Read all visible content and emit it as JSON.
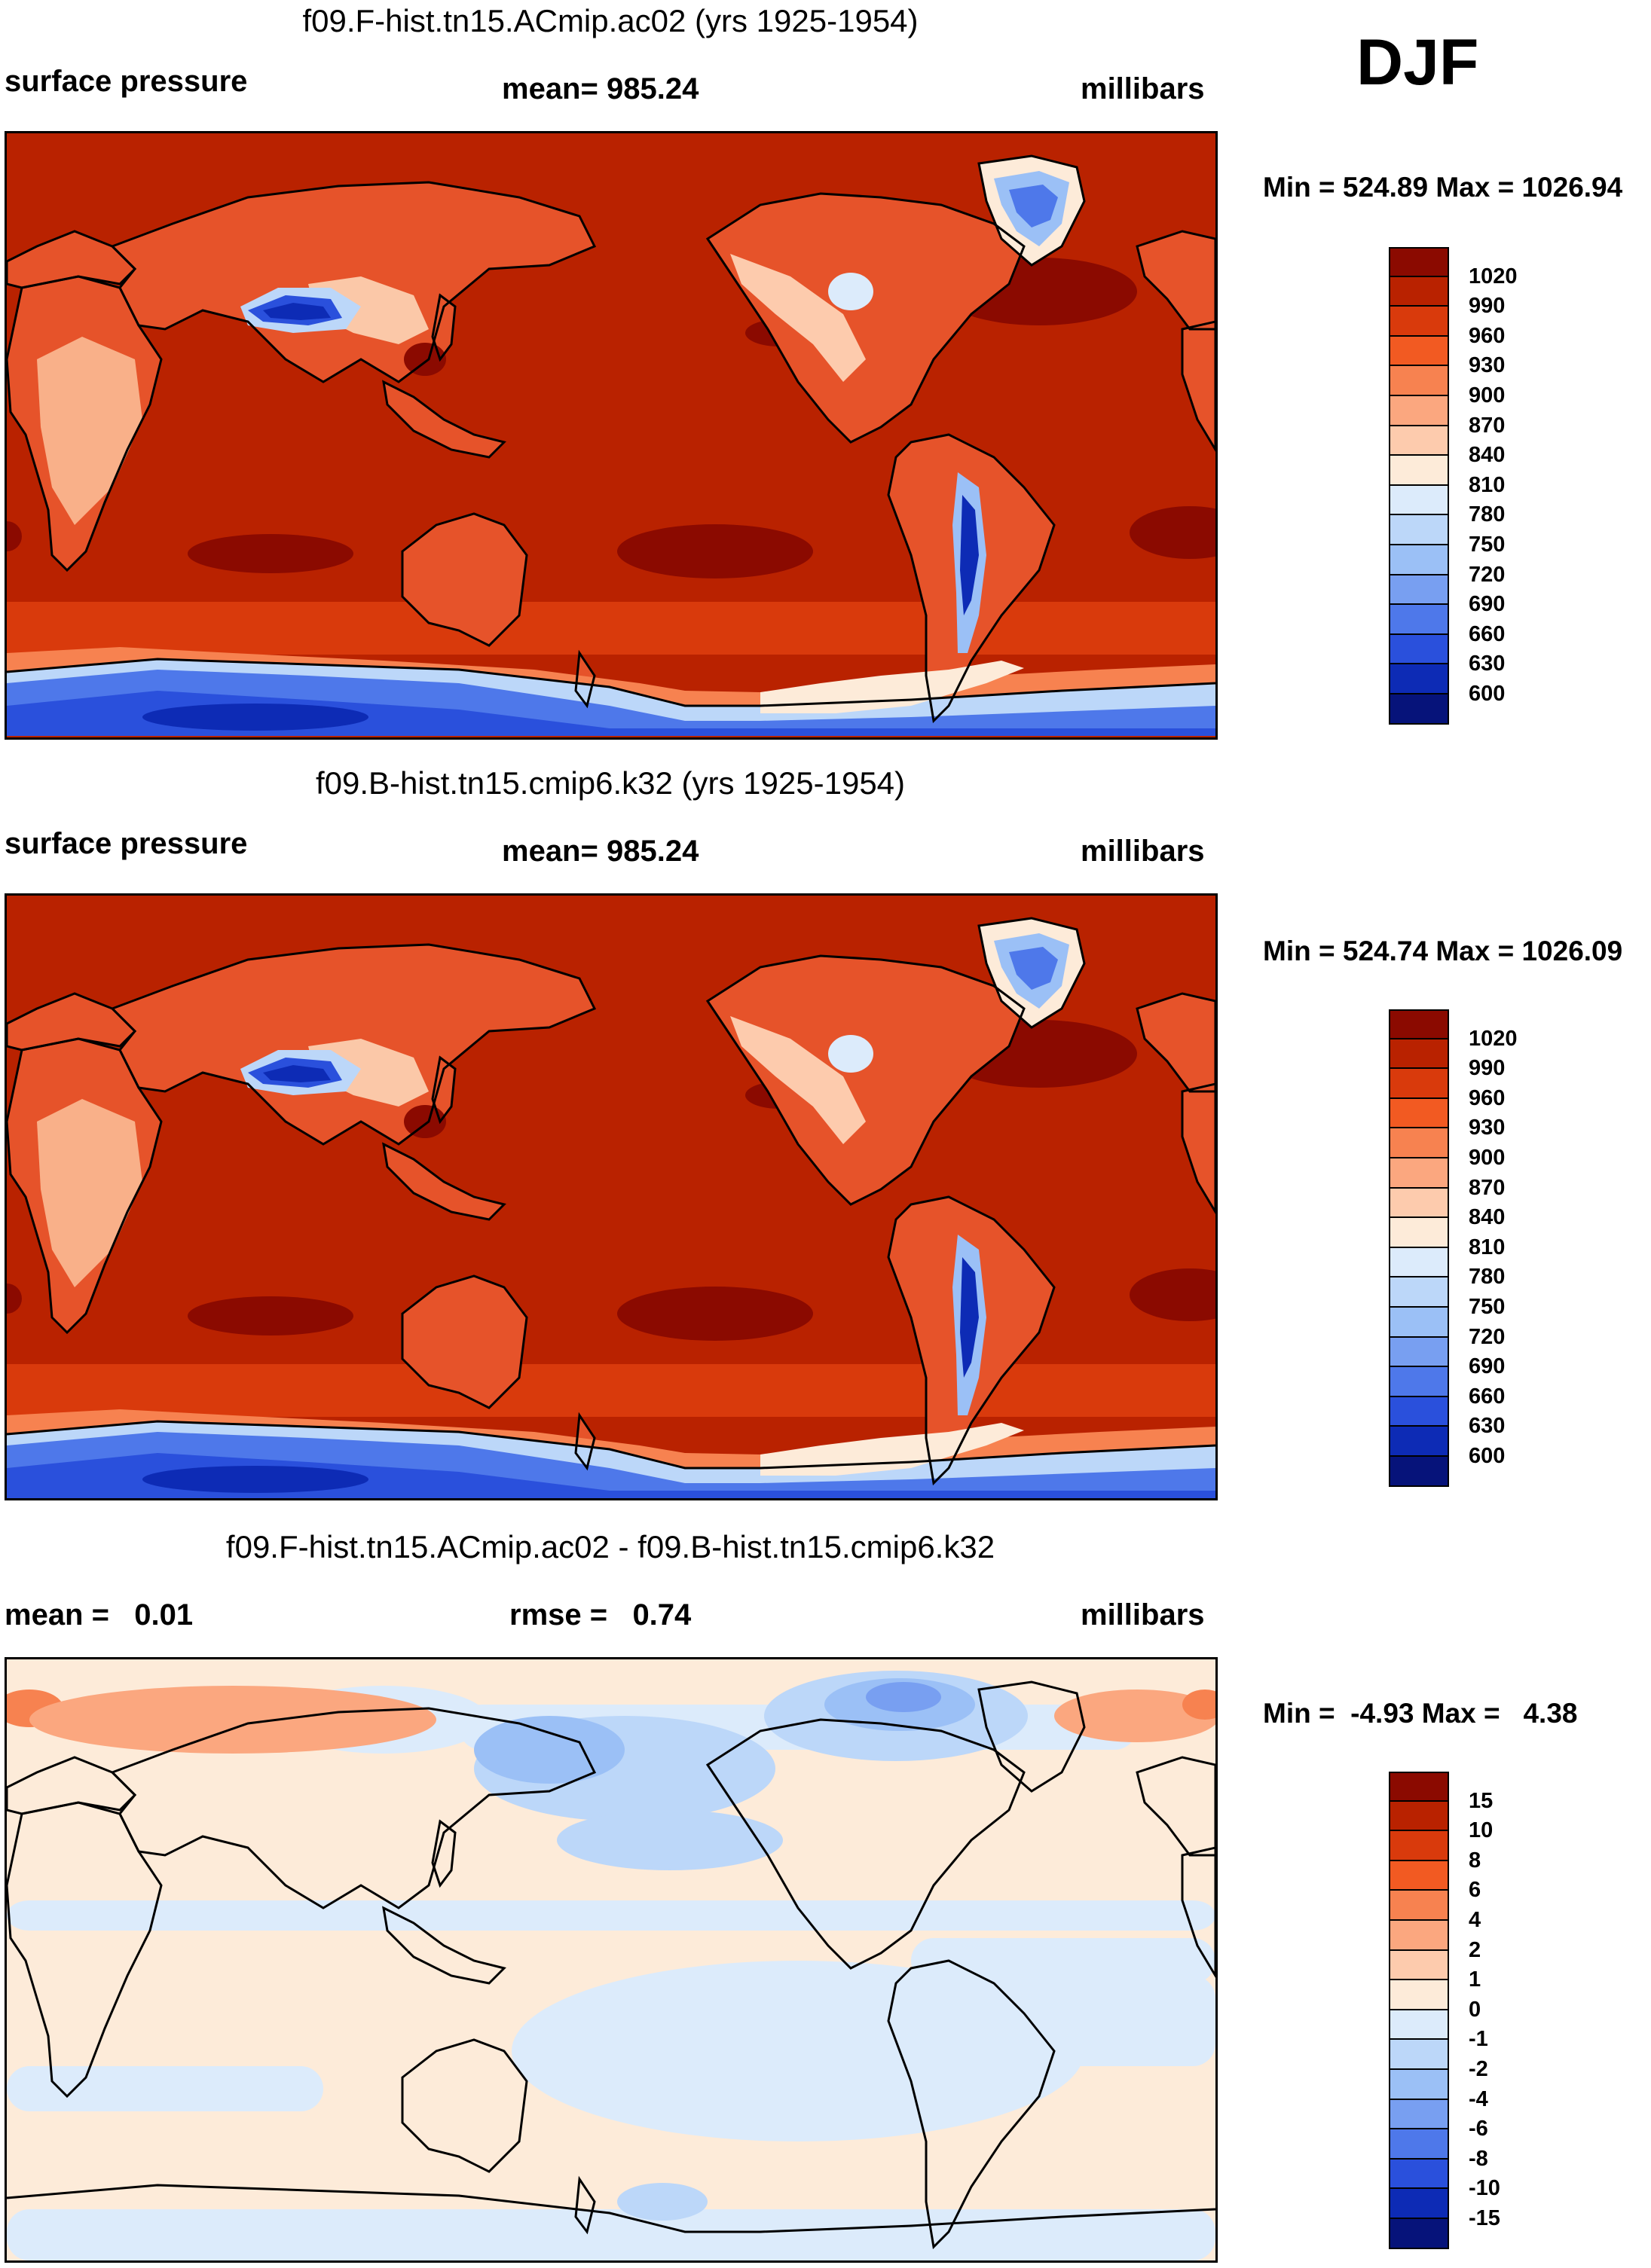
{
  "season": "DJF",
  "panels": [
    {
      "title": "f09.F-hist.tn15.ACmip.ac02 (yrs 1925-1954)",
      "left_label": "surface pressure",
      "center_label": "mean= 985.24",
      "units": "millibars",
      "minmax": "Min = 524.89 Max = 1026.94",
      "variant": "abs"
    },
    {
      "title": "f09.B-hist.tn15.cmip6.k32 (yrs 1925-1954)",
      "left_label": "surface pressure",
      "center_label": "mean= 985.24",
      "units": "millibars",
      "minmax": "Min = 524.74 Max = 1026.09",
      "variant": "abs"
    },
    {
      "title": "f09.F-hist.tn15.ACmip.ac02 - f09.B-hist.tn15.cmip6.k32",
      "left_label": "mean =   0.01",
      "center_label": "rmse =   0.74",
      "units": "millibars",
      "minmax": "Min =  -4.93 Max =   4.38",
      "variant": "diff"
    }
  ],
  "colorbars": {
    "abs": {
      "labels": [
        "1020",
        "990",
        "960",
        "930",
        "900",
        "870",
        "840",
        "810",
        "780",
        "750",
        "720",
        "690",
        "660",
        "630",
        "600"
      ],
      "colors": [
        "#8b0a00",
        "#b92200",
        "#d93a0c",
        "#f25a22",
        "#f78250",
        "#fba77f",
        "#fdcbad",
        "#fdebd9",
        "#dcebfb",
        "#bcd7f9",
        "#9bc0f6",
        "#789ff1",
        "#4e78ea",
        "#2a50dc",
        "#0d2bb5",
        "#06137a"
      ]
    },
    "diff": {
      "labels": [
        "15",
        "10",
        "8",
        "6",
        "4",
        "2",
        "1",
        "0",
        "-1",
        "-2",
        "-4",
        "-6",
        "-8",
        "-10",
        "-15"
      ],
      "colors": [
        "#8b0a00",
        "#b92200",
        "#d93a0c",
        "#f25a22",
        "#f78250",
        "#fba77f",
        "#fdcbad",
        "#fdebd9",
        "#dcebfb",
        "#bcd7f9",
        "#9bc0f6",
        "#789ff1",
        "#4e78ea",
        "#2a50dc",
        "#0d2bb5",
        "#06137a"
      ]
    }
  }
}
